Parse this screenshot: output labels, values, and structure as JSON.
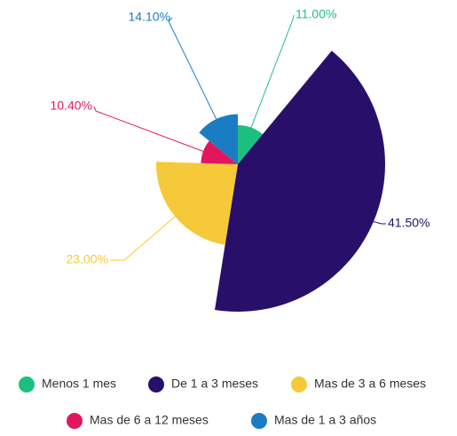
{
  "chart_data": {
    "type": "rose",
    "categories": [
      "Menos 1 mes",
      "De 1 a 3 meses",
      "Mas de 3 a 6 meses",
      "Mas de 6 a 12 meses",
      "Mas de 1 a 3 años"
    ],
    "values": [
      11,
      41.5,
      23,
      10.4,
      14.1
    ],
    "value_labels": [
      "11.00%",
      "41.50%",
      "23.00%",
      "10.40%",
      "14.10%"
    ],
    "colors": [
      "#1dbf80",
      "#28106a",
      "#f6c93b",
      "#e0175f",
      "#1a7dc4"
    ]
  }
}
